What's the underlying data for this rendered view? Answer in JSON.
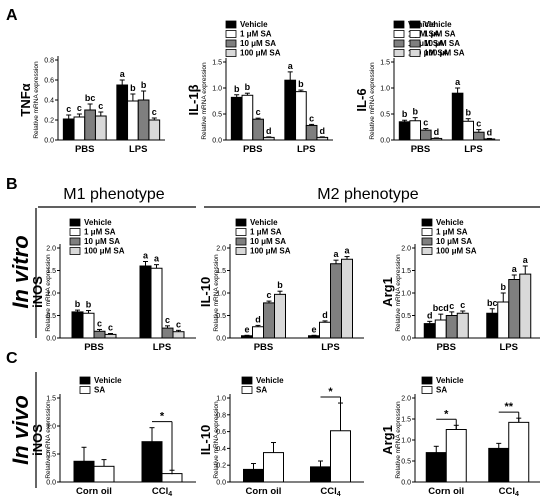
{
  "panel_labels": {
    "a": "A",
    "b": "B",
    "c": "C"
  },
  "phenotypes": {
    "m1": "M1 phenotype",
    "m2": "M2 phenotype"
  },
  "row_labels": {
    "in_vitro": "In vitro",
    "in_vivo": "In vivo"
  },
  "y_axis_label": "Relative mRNA expression",
  "colors": {
    "vehicle": "#000000",
    "sa1": "#ffffff",
    "sa10": "#7f7f7f",
    "sa100": "#d9d9d9",
    "axis": "#000000"
  },
  "legend4": [
    "Vehicle",
    "1 μM SA",
    "10 μM SA",
    "100 μM SA"
  ],
  "legend2": [
    "Vehicle",
    "SA"
  ],
  "chart_data": [
    {
      "id": "A-TNF",
      "type": "bar",
      "gene": "TNFα",
      "categories": [
        "PBS",
        "LPS"
      ],
      "ylim": [
        0,
        0.8
      ],
      "yticks": [
        0.0,
        0.2,
        0.4,
        0.6,
        0.8
      ],
      "series": [
        {
          "name": "Vehicle",
          "values": [
            0.21,
            0.55
          ],
          "errors": [
            0.04,
            0.05
          ],
          "letters": [
            "c",
            "a"
          ]
        },
        {
          "name": "1 μM SA",
          "values": [
            0.23,
            0.39
          ],
          "errors": [
            0.03,
            0.07
          ],
          "letters": [
            "c",
            "b"
          ]
        },
        {
          "name": "10 μM SA",
          "values": [
            0.3,
            0.4
          ],
          "errors": [
            0.06,
            0.09
          ],
          "letters": [
            "bc",
            "b"
          ]
        },
        {
          "name": "100 μM SA",
          "values": [
            0.24,
            0.2
          ],
          "errors": [
            0.04,
            0.02
          ],
          "letters": [
            "c",
            "c"
          ]
        }
      ]
    },
    {
      "id": "A-IL1",
      "type": "bar",
      "gene": "IL-1β",
      "categories": [
        "PBS",
        "LPS"
      ],
      "ylim": [
        0,
        1.5
      ],
      "yticks": [
        0.0,
        0.5,
        1.0,
        1.5
      ],
      "series": [
        {
          "name": "Vehicle",
          "values": [
            0.82,
            1.15
          ],
          "errors": [
            0.05,
            0.16
          ],
          "letters": [
            "b",
            "a"
          ]
        },
        {
          "name": "1 μM SA",
          "values": [
            0.86,
            0.93
          ],
          "errors": [
            0.04,
            0.03
          ],
          "letters": [
            "b",
            "b"
          ]
        },
        {
          "name": "10 μM SA",
          "values": [
            0.4,
            0.28
          ],
          "errors": [
            0.02,
            0.02
          ],
          "letters": [
            "c",
            "c"
          ]
        },
        {
          "name": "100 μM SA",
          "values": [
            0.05,
            0.05
          ],
          "errors": [
            0.01,
            0.01
          ],
          "letters": [
            "d",
            "d"
          ]
        }
      ]
    },
    {
      "id": "A-IL6",
      "type": "bar",
      "gene": "IL-6",
      "categories": [
        "PBS",
        "LPS"
      ],
      "ylim": [
        0,
        1.5
      ],
      "yticks": [
        0.0,
        0.5,
        1.0,
        1.5
      ],
      "series": [
        {
          "name": "Vehicle",
          "values": [
            0.35,
            0.9
          ],
          "errors": [
            0.03,
            0.1
          ],
          "letters": [
            "b",
            "a"
          ]
        },
        {
          "name": "1 μM SA",
          "values": [
            0.37,
            0.36
          ],
          "errors": [
            0.06,
            0.05
          ],
          "letters": [
            "b",
            "b"
          ]
        },
        {
          "name": "10 μM SA",
          "values": [
            0.19,
            0.15
          ],
          "errors": [
            0.03,
            0.05
          ],
          "letters": [
            "c",
            "c"
          ]
        },
        {
          "name": "100 μM SA",
          "values": [
            0.03,
            0.02
          ],
          "errors": [
            0.01,
            0.01
          ],
          "letters": [
            "d",
            "d"
          ]
        }
      ]
    },
    {
      "id": "B-iNOS",
      "type": "bar",
      "gene": "iNOS",
      "categories": [
        "PBS",
        "LPS"
      ],
      "ylim": [
        0,
        2.0
      ],
      "yticks": [
        0.0,
        0.5,
        1.0,
        1.5,
        2.0
      ],
      "series": [
        {
          "name": "Vehicle",
          "values": [
            0.58,
            1.6
          ],
          "errors": [
            0.04,
            0.1
          ],
          "letters": [
            "b",
            "a"
          ]
        },
        {
          "name": "1 μM SA",
          "values": [
            0.55,
            1.55
          ],
          "errors": [
            0.06,
            0.08
          ],
          "letters": [
            "b",
            "a"
          ]
        },
        {
          "name": "10 μM SA",
          "values": [
            0.15,
            0.22
          ],
          "errors": [
            0.04,
            0.05
          ],
          "letters": [
            "c",
            "c"
          ]
        },
        {
          "name": "100 μM SA",
          "values": [
            0.08,
            0.14
          ],
          "errors": [
            0.02,
            0.03
          ],
          "letters": [
            "c",
            "c"
          ]
        }
      ]
    },
    {
      "id": "B-IL10",
      "type": "bar",
      "gene": "IL-10",
      "categories": [
        "PBS",
        "LPS"
      ],
      "ylim": [
        0,
        2.0
      ],
      "yticks": [
        0.0,
        0.5,
        1.0,
        1.5,
        2.0
      ],
      "series": [
        {
          "name": "Vehicle",
          "values": [
            0.05,
            0.05
          ],
          "errors": [
            0.01,
            0.01
          ],
          "letters": [
            "e",
            "e"
          ]
        },
        {
          "name": "1 μM SA",
          "values": [
            0.25,
            0.35
          ],
          "errors": [
            0.03,
            0.03
          ],
          "letters": [
            "d",
            "d"
          ]
        },
        {
          "name": "10 μM SA",
          "values": [
            0.78,
            1.65
          ],
          "errors": [
            0.04,
            0.08
          ],
          "letters": [
            "c",
            "a"
          ]
        },
        {
          "name": "100 μM SA",
          "values": [
            0.97,
            1.75
          ],
          "errors": [
            0.07,
            0.06
          ],
          "letters": [
            "b",
            "a"
          ]
        }
      ]
    },
    {
      "id": "B-Arg1",
      "type": "bar",
      "gene": "Arg1",
      "categories": [
        "PBS",
        "LPS"
      ],
      "ylim": [
        0,
        2.0
      ],
      "yticks": [
        0.0,
        0.5,
        1.0,
        1.5,
        2.0
      ],
      "series": [
        {
          "name": "Vehicle",
          "values": [
            0.32,
            0.55
          ],
          "errors": [
            0.05,
            0.1
          ],
          "letters": [
            "d",
            "bc"
          ]
        },
        {
          "name": "1 μM SA",
          "values": [
            0.4,
            0.8
          ],
          "errors": [
            0.13,
            0.2
          ],
          "letters": [
            "bcd",
            "b"
          ]
        },
        {
          "name": "10 μM SA",
          "values": [
            0.5,
            1.3
          ],
          "errors": [
            0.08,
            0.1
          ],
          "letters": [
            "c",
            "a"
          ]
        },
        {
          "name": "100 μM SA",
          "values": [
            0.55,
            1.42
          ],
          "errors": [
            0.05,
            0.18
          ],
          "letters": [
            "c",
            "a"
          ]
        }
      ]
    },
    {
      "id": "C-iNOS",
      "type": "bar",
      "gene": "iNOS",
      "categories": [
        "Corn oil",
        "CCl4"
      ],
      "ylim": [
        0,
        1.5
      ],
      "yticks": [
        0.0,
        0.5,
        1.0,
        1.5
      ],
      "series": [
        {
          "name": "Vehicle",
          "values": [
            0.37,
            0.72
          ],
          "errors": [
            0.25,
            0.25
          ]
        },
        {
          "name": "SA",
          "values": [
            0.28,
            0.15
          ],
          "errors": [
            0.12,
            0.06
          ]
        }
      ],
      "significance": [
        {
          "category": 1,
          "label": "*"
        }
      ]
    },
    {
      "id": "C-IL10",
      "type": "bar",
      "gene": "IL-10",
      "categories": [
        "Corn oil",
        "CCl4"
      ],
      "ylim": [
        0,
        1.0
      ],
      "yticks": [
        0.0,
        0.2,
        0.4,
        0.6,
        0.8,
        1.0
      ],
      "series": [
        {
          "name": "Vehicle",
          "values": [
            0.15,
            0.18
          ],
          "errors": [
            0.07,
            0.07
          ]
        },
        {
          "name": "SA",
          "values": [
            0.35,
            0.61
          ],
          "errors": [
            0.12,
            0.33
          ]
        }
      ],
      "significance": [
        {
          "category": 1,
          "label": "*"
        }
      ]
    },
    {
      "id": "C-Arg1",
      "type": "bar",
      "gene": "Arg1",
      "categories": [
        "Corn oil",
        "CCl4"
      ],
      "ylim": [
        0,
        2.0
      ],
      "yticks": [
        0.0,
        0.5,
        1.0,
        1.5,
        2.0
      ],
      "series": [
        {
          "name": "Vehicle",
          "values": [
            0.7,
            0.8
          ],
          "errors": [
            0.15,
            0.12
          ]
        },
        {
          "name": "SA",
          "values": [
            1.25,
            1.42
          ],
          "errors": [
            0.1,
            0.1
          ]
        }
      ],
      "significance": [
        {
          "category": 0,
          "label": "*"
        },
        {
          "category": 1,
          "label": "**"
        }
      ]
    }
  ]
}
